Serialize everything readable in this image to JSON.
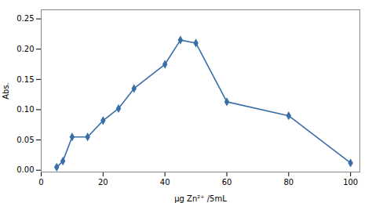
{
  "chart_data": {
    "type": "line",
    "x": [
      5,
      7,
      10,
      15,
      20,
      25,
      30,
      40,
      45,
      50,
      60,
      80,
      100
    ],
    "values": [
      0.005,
      0.015,
      0.055,
      0.055,
      0.082,
      0.102,
      0.135,
      0.175,
      0.215,
      0.21,
      0.113,
      0.09,
      0.012
    ],
    "xlabel": "μg Zn²⁺ /5mL",
    "ylabel": "Abs.",
    "xlim": [
      0,
      103
    ],
    "ylim": [
      -0.003,
      0.265
    ],
    "xticks": [
      0,
      20,
      40,
      60,
      80,
      100
    ],
    "yticks": [
      {
        "value": 0,
        "label": "0.00"
      },
      {
        "value": 0.05,
        "label": "0.05"
      },
      {
        "value": 0.1,
        "label": "0.10"
      },
      {
        "value": 0.15,
        "label": "0.15"
      },
      {
        "value": 0.2,
        "label": "0.20"
      },
      {
        "value": 0.25,
        "label": "0.25"
      }
    ],
    "color": "#3a6ea8",
    "marker": "diamond",
    "grid": false
  }
}
